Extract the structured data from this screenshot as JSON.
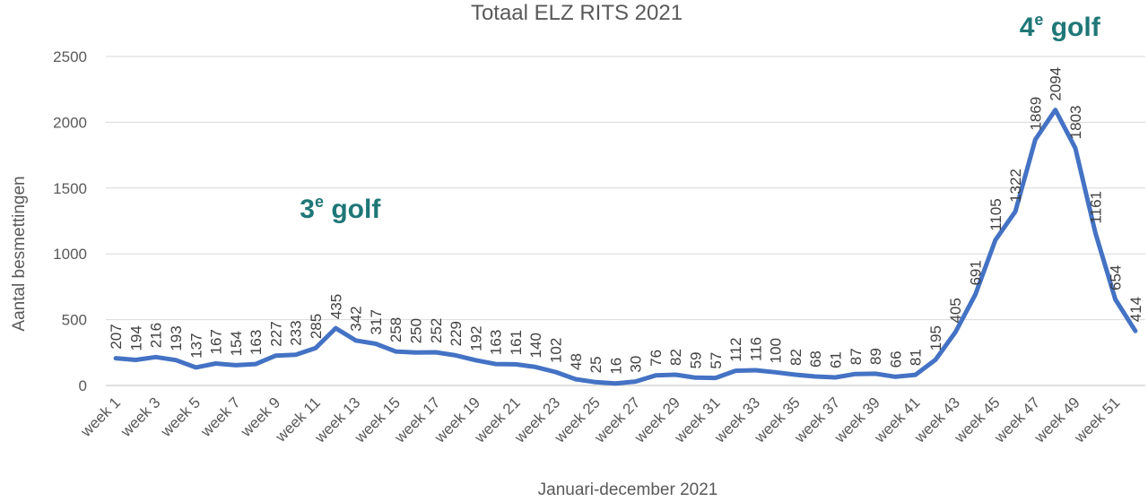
{
  "chart_data": {
    "type": "line",
    "title": "Totaal ELZ RITS 2021",
    "xlabel": "Januari-december 2021",
    "ylabel": "Aantal besmettingen",
    "ylim": [
      0,
      2500
    ],
    "yticks": [
      0,
      500,
      1000,
      1500,
      2000,
      2500
    ],
    "grid": true,
    "legend": "none",
    "x_tick_labels": [
      "week 1",
      "week 3",
      "week 5",
      "week 7",
      "week 9",
      "week 11",
      "week 13",
      "week 15",
      "week 17",
      "week 19",
      "week 21",
      "week 23",
      "week 25",
      "week 27",
      "week 29",
      "week 31",
      "week 33",
      "week 35",
      "week 37",
      "week 39",
      "week 41",
      "week 43",
      "week 45",
      "week 47",
      "week 49",
      "week 51"
    ],
    "series": [
      {
        "color": "#4472c4",
        "values": [
          207,
          194,
          216,
          193,
          137,
          167,
          154,
          163,
          227,
          233,
          285,
          435,
          342,
          317,
          258,
          250,
          252,
          229,
          192,
          163,
          161,
          140,
          102,
          48,
          25,
          16,
          30,
          76,
          82,
          59,
          57,
          112,
          116,
          100,
          82,
          68,
          61,
          87,
          89,
          66,
          81,
          195,
          405,
          691,
          1105,
          1322,
          1869,
          2094,
          1803,
          1161,
          654,
          414
        ]
      }
    ],
    "annotations": [
      {
        "base": "3",
        "sup": "e",
        "text": "golf",
        "week": 12
      },
      {
        "base": "4",
        "sup": "e",
        "text": "golf",
        "week": 48
      }
    ]
  }
}
